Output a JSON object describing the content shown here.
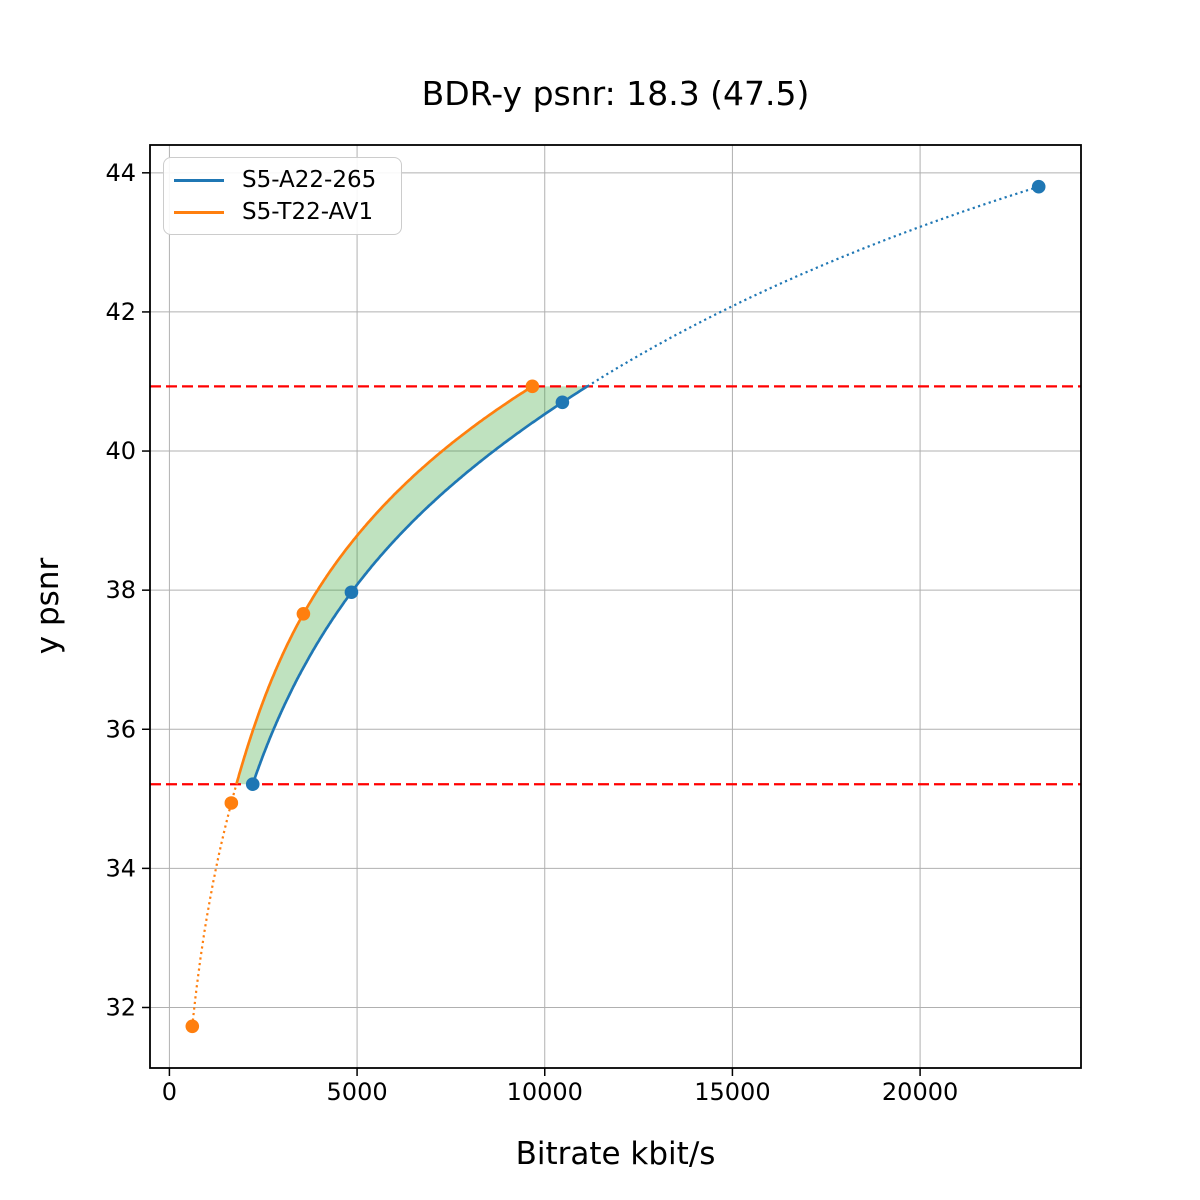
{
  "chart_data": {
    "type": "line",
    "title": "BDR-y psnr: 18.3 (47.5)",
    "xlabel": "Bitrate kbit/s",
    "ylabel": "y psnr",
    "xlim": [
      -517,
      24287
    ],
    "ylim": [
      31.13,
      44.4
    ],
    "xticks": [
      0,
      5000,
      10000,
      15000,
      20000
    ],
    "xtick_labels": [
      "0",
      "5000",
      "10000",
      "15000",
      "20000"
    ],
    "yticks": [
      32,
      34,
      36,
      38,
      40,
      42,
      44
    ],
    "ytick_labels": [
      "32",
      "34",
      "36",
      "38",
      "40",
      "42",
      "44"
    ],
    "grid": true,
    "grid_color": "#b0b0b0",
    "spine_color": "#000000",
    "legend_position": "upper left",
    "series": [
      {
        "name": "S5-A22-265",
        "color": "#1f77b4",
        "x": [
          2220,
          4850,
          10470,
          23160
        ],
        "y": [
          35.21,
          37.97,
          40.7,
          43.8
        ]
      },
      {
        "name": "S5-T22-AV1",
        "color": "#ff7f0e",
        "x": [
          610,
          1650,
          3570,
          9670
        ],
        "y": [
          31.73,
          34.94,
          37.66,
          40.93
        ]
      }
    ],
    "interpolation": "pchip-log-x",
    "solid_y_range": [
      35.21,
      40.93
    ],
    "hlines": [
      {
        "y": 35.21,
        "color": "#ff0000",
        "style": "dashed"
      },
      {
        "y": 40.93,
        "color": "#ff0000",
        "style": "dashed"
      }
    ],
    "shaded_region": {
      "between": [
        "S5-T22-AV1",
        "S5-A22-265"
      ],
      "y_range": [
        35.21,
        40.93
      ],
      "color": "#2ca02c",
      "alpha": 0.3
    }
  }
}
